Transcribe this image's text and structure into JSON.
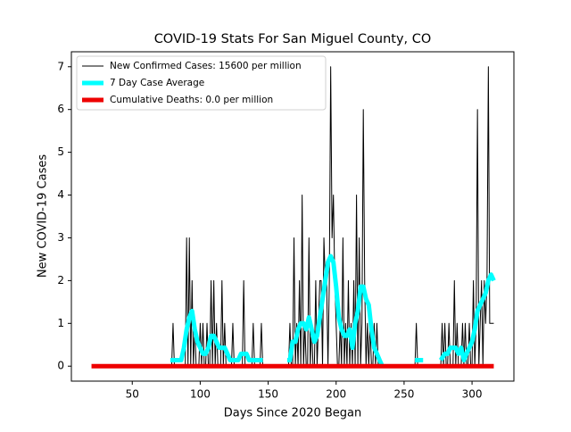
{
  "chart_data": {
    "type": "line",
    "title": "COVID-19 Stats For San Miguel County, CO",
    "xlabel": "Days Since 2020 Began",
    "ylabel": "New COVID-19 Cases",
    "xlim": [
      5.2,
      330.8
    ],
    "ylim": [
      -0.35,
      7.35
    ],
    "xticks": [
      50,
      100,
      150,
      200,
      250,
      300
    ],
    "yticks": [
      0,
      1,
      2,
      3,
      4,
      5,
      6,
      7
    ],
    "legend": "upper left",
    "series": [
      {
        "name": "New Confirmed Cases: 15600 per million",
        "color": "#000000",
        "width": 1,
        "x": [
          78,
          79,
          80,
          81,
          89,
          90,
          91,
          92,
          93,
          94,
          95,
          96,
          97,
          99,
          100,
          101,
          102,
          103,
          104,
          105,
          106,
          107,
          108,
          109,
          110,
          111,
          112,
          113,
          115,
          116,
          117,
          118,
          119,
          123,
          124,
          125,
          131,
          132,
          133,
          138,
          139,
          140,
          144,
          145,
          146,
          165,
          166,
          167,
          168,
          169,
          170,
          171,
          172,
          173,
          174,
          175,
          176,
          177,
          178,
          179,
          180,
          181,
          182,
          183,
          184,
          185,
          186,
          187,
          188,
          189,
          190,
          191,
          192,
          193,
          194,
          195,
          196,
          197,
          198,
          199,
          200,
          201,
          202,
          203,
          204,
          205,
          206,
          207,
          208,
          209,
          210,
          211,
          212,
          213,
          214,
          215,
          216,
          217,
          218,
          219,
          220,
          221,
          222,
          223,
          224,
          225,
          226,
          227,
          228,
          229,
          230,
          231,
          258,
          259,
          260,
          277,
          278,
          279,
          280,
          281,
          282,
          283,
          284,
          286,
          287,
          288,
          289,
          290,
          292,
          293,
          294,
          295,
          296,
          297,
          298,
          299,
          300,
          301,
          302,
          303,
          304,
          305,
          306,
          307,
          308,
          309,
          310,
          311,
          312,
          313,
          314,
          315,
          316
        ],
        "values": [
          0,
          0,
          1,
          0,
          0,
          3,
          0,
          3,
          0,
          2,
          0,
          1,
          0,
          0,
          1,
          0,
          1,
          0,
          0,
          1,
          0,
          0,
          2,
          0,
          2,
          0,
          1,
          0,
          0,
          2,
          0,
          1,
          0,
          0,
          1,
          0,
          0,
          2,
          0,
          0,
          1,
          0,
          0,
          1,
          0,
          0,
          1,
          0,
          0,
          3,
          0,
          1,
          0,
          2,
          0,
          4,
          0,
          1,
          0,
          0,
          3,
          0,
          1,
          0,
          0,
          2,
          0,
          1,
          2,
          2,
          0,
          3,
          2,
          2,
          0,
          2,
          7,
          3,
          4,
          2,
          1,
          0,
          0,
          1,
          0,
          3,
          0,
          1,
          0,
          2,
          0,
          1,
          0,
          2,
          0,
          4,
          0,
          3,
          0,
          1,
          6,
          2,
          0,
          1,
          0,
          1,
          0,
          0,
          1,
          0,
          1,
          0,
          0,
          1,
          0,
          0,
          1,
          0,
          1,
          0,
          0,
          1,
          0,
          0,
          2,
          0,
          1,
          0,
          0,
          1,
          0,
          1,
          0,
          0,
          1,
          0,
          0,
          2,
          0,
          1,
          6,
          0,
          1,
          2,
          0,
          2,
          1,
          2,
          7,
          1,
          1,
          1,
          1
        ]
      },
      {
        "name": "7 Day Case Average",
        "color": "#00ffff",
        "width": 5,
        "x": [
          78,
          82,
          86,
          88,
          90,
          92,
          94,
          96,
          98,
          100,
          102,
          104,
          106,
          108,
          110,
          112,
          114,
          116,
          118,
          120,
          122,
          124,
          126,
          128,
          130,
          132,
          134,
          136,
          138,
          140,
          142,
          144,
          146,
          150,
          164,
          166,
          168,
          170,
          172,
          174,
          176,
          178,
          180,
          182,
          184,
          186,
          188,
          190,
          192,
          194,
          196,
          198,
          200,
          202,
          204,
          206,
          208,
          210,
          212,
          214,
          216,
          218,
          220,
          222,
          224,
          226,
          228,
          230,
          232,
          234,
          245,
          258,
          260,
          264,
          270,
          277,
          280,
          282,
          284,
          286,
          288,
          290,
          292,
          294,
          296,
          298,
          300,
          302,
          304,
          306,
          308,
          310,
          312,
          314,
          316
        ],
        "values": [
          0.14,
          0.14,
          0.14,
          0.43,
          0.86,
          1.14,
          1.29,
          0.86,
          0.57,
          0.43,
          0.29,
          0.29,
          0.43,
          0.71,
          0.71,
          0.57,
          0.43,
          0.43,
          0.43,
          0.29,
          0.14,
          0.14,
          0.14,
          0.14,
          0.29,
          0.29,
          0.29,
          0.14,
          0.14,
          0.14,
          0.14,
          0.14,
          0.14,
          null,
          0.14,
          0.14,
          0.57,
          0.57,
          0.86,
          1,
          1,
          0.86,
          1.14,
          0.86,
          0.57,
          0.71,
          1.14,
          1.57,
          2,
          2.43,
          2.57,
          2.43,
          1.86,
          1.14,
          0.86,
          0.71,
          0.71,
          0.86,
          0.43,
          1,
          1.29,
          1.86,
          1.86,
          1.57,
          1.43,
          0.86,
          0.43,
          0.29,
          0.14,
          0,
          null,
          0.14,
          0.14,
          0.14,
          null,
          0.14,
          0.29,
          0.29,
          0.43,
          0.43,
          0.43,
          0.29,
          0.43,
          0.14,
          0.29,
          0.43,
          0.57,
          0.86,
          1.29,
          1.43,
          1.57,
          1.71,
          2,
          2.14,
          2
        ]
      },
      {
        "name": "Cumulative Deaths: 0.0 per million",
        "color": "#ee0000",
        "width": 5,
        "x": [
          20,
          316
        ],
        "values": [
          0,
          0
        ]
      }
    ]
  }
}
